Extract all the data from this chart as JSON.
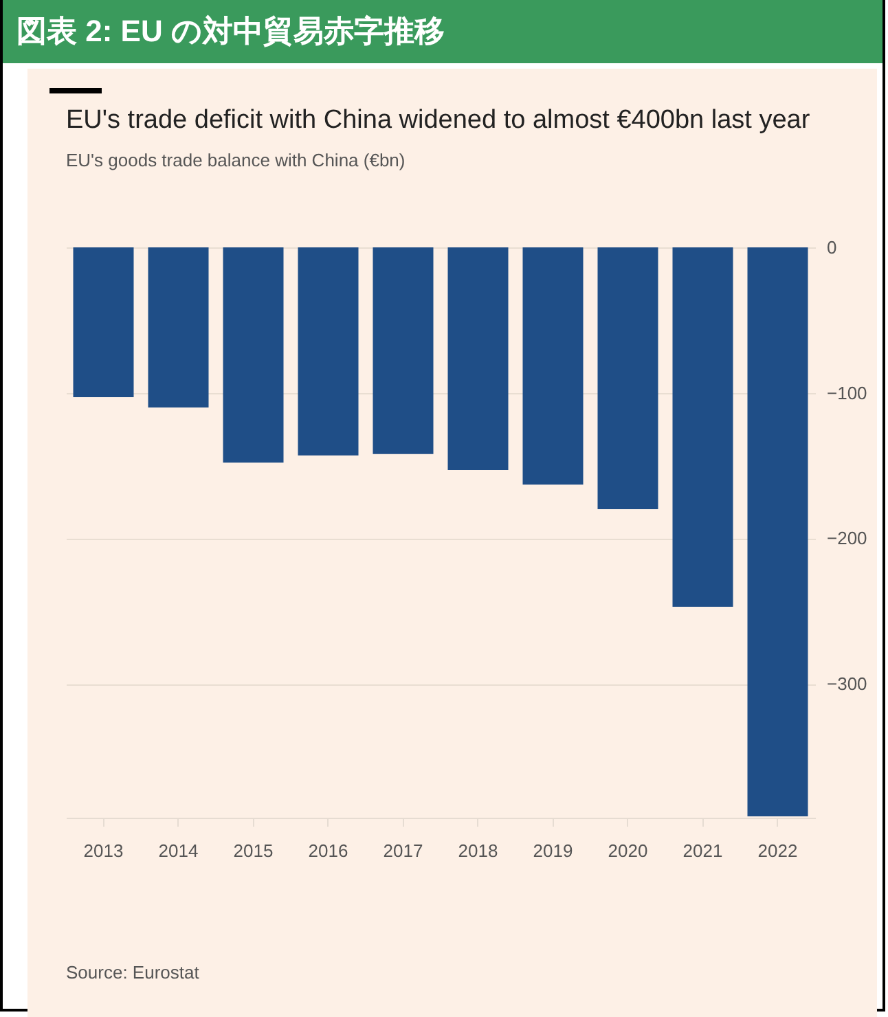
{
  "chart_data": {
    "type": "bar",
    "title": "図表 2: EU の対中貿易赤字推移",
    "subtitle": "EU's trade deficit with China widened to almost €400bn last year",
    "ylabel": "EU's goods trade balance with China (€bn)",
    "categories": [
      "2013",
      "2014",
      "2015",
      "2016",
      "2017",
      "2018",
      "2019",
      "2020",
      "2021",
      "2022"
    ],
    "values": [
      -103,
      -110,
      -148,
      -143,
      -142,
      -153,
      -163,
      -180,
      -247,
      -391
    ],
    "color": "#1f4e87",
    "ylim": [
      -392,
      0
    ],
    "yticks": [
      0,
      -100,
      -200,
      -300
    ],
    "grid": "y",
    "annotations": [
      "Source: Eurostat"
    ]
  }
}
